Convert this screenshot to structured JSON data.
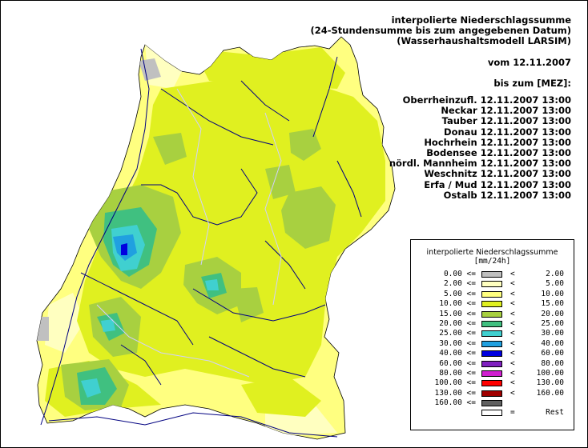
{
  "header": {
    "title_lines": [
      "interpolierte Niederschlagssumme",
      "(24-Stundensumme bis zum angegebenen Datum)",
      "(Wasserhaushaltsmodell LARSIM)"
    ],
    "date_line": "vom 12.11.2007",
    "until_line": "bis zum [MEZ]:",
    "gauges": [
      "Oberrheinzufl. 12.11.2007 13:00",
      "Neckar 12.11.2007 13:00",
      "Tauber 12.11.2007 13:00",
      "Donau 12.11.2007 13:00",
      "Hochrhein 12.11.2007 13:00",
      "Bodensee 12.11.2007 13:00",
      "nördl. Mannheim 12.11.2007 13:00",
      "Weschnitz 12.11.2007 13:00",
      "Erfa / Mud 12.11.2007 13:00",
      "Ostalb 12.11.2007 13:00"
    ]
  },
  "legend": {
    "title": "interpolierte Niederschlagssumme",
    "unit": "[mm/24h]",
    "classes": [
      {
        "low": "0.00 <=",
        "op": "<",
        "high": "2.00",
        "color": "#c0c0c0"
      },
      {
        "low": "2.00 <=",
        "op": "<",
        "high": "5.00",
        "color": "#ffffc0"
      },
      {
        "low": "5.00 <=",
        "op": "<",
        "high": "10.00",
        "color": "#ffff80"
      },
      {
        "low": "10.00 <=",
        "op": "<",
        "high": "15.00",
        "color": "#e0f020"
      },
      {
        "low": "15.00 <=",
        "op": "<",
        "high": "20.00",
        "color": "#a8d040"
      },
      {
        "low": "20.00 <=",
        "op": "<",
        "high": "25.00",
        "color": "#40c080"
      },
      {
        "low": "25.00 <=",
        "op": "<",
        "high": "30.00",
        "color": "#40d0d0"
      },
      {
        "low": "30.00 <=",
        "op": "<",
        "high": "40.00",
        "color": "#20a0e0"
      },
      {
        "low": "40.00 <=",
        "op": "<",
        "high": "60.00",
        "color": "#0000e0"
      },
      {
        "low": "60.00 <=",
        "op": "<",
        "high": "80.00",
        "color": "#8020c0"
      },
      {
        "low": "80.00 <=",
        "op": "<",
        "high": "100.00",
        "color": "#d020d0"
      },
      {
        "low": "100.00 <=",
        "op": "<",
        "high": "130.00",
        "color": "#ff0000"
      },
      {
        "low": "130.00 <=",
        "op": "<",
        "high": "160.00",
        "color": "#a00000"
      },
      {
        "low": "160.00 <=",
        "op": "",
        "high": "",
        "color": "#606060"
      },
      {
        "low": "",
        "op": "=",
        "high": "Rest",
        "color": "#ffffff"
      }
    ]
  }
}
